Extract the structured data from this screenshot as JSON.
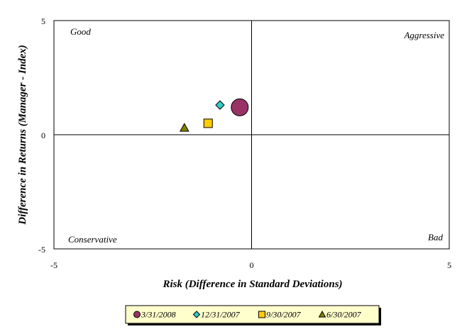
{
  "chart_data": {
    "type": "scatter",
    "title": "",
    "xlabel": "Risk (Difference in Standard Deviations)",
    "ylabel": "Difference in Returns (Manager - Index)",
    "xlim": [
      -5,
      5
    ],
    "ylim": [
      -5,
      5
    ],
    "x_ticks": [
      "-5",
      "0",
      "5"
    ],
    "y_ticks": [
      "5",
      "0",
      "-5"
    ],
    "grid": false,
    "quadrant_labels": {
      "top_left": "Good",
      "top_right": "Aggressive",
      "bottom_left": "Conservative",
      "bottom_right": "Bad"
    },
    "legend_position": "bottom",
    "series": [
      {
        "name": "3/31/2008",
        "marker": "circle",
        "color": "#993366",
        "x": -0.3,
        "y": 1.2
      },
      {
        "name": "12/31/2007",
        "marker": "diamond",
        "color": "#33cccc",
        "x": -0.8,
        "y": 1.3
      },
      {
        "name": "9/30/2007",
        "marker": "square",
        "color": "#ffcc00",
        "x": -1.1,
        "y": 0.5
      },
      {
        "name": "6/30/2007",
        "marker": "triangle",
        "color": "#808000",
        "x": -1.7,
        "y": 0.3
      }
    ]
  }
}
